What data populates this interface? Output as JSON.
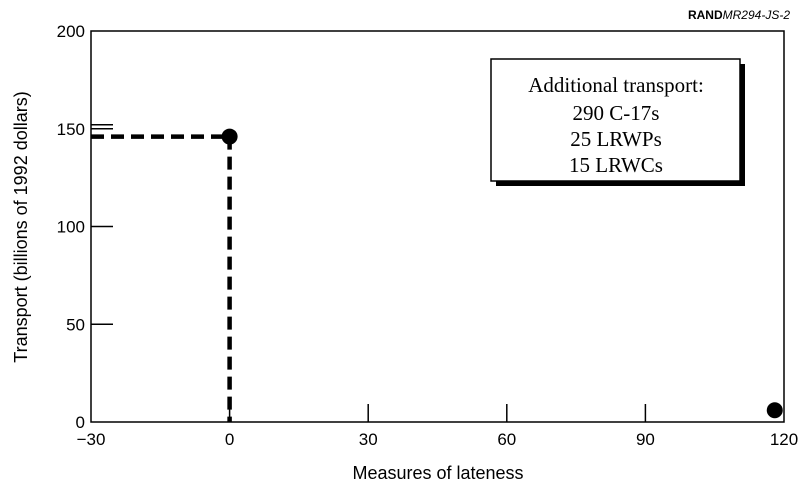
{
  "chart_data": {
    "type": "scatter",
    "ref_id_bold": "RAND",
    "ref_id_rest": "MR294-JS-2",
    "xlabel": "Measures of lateness",
    "ylabel": "Transport (billions of 1992 dollars)",
    "xlim": [
      -30,
      120
    ],
    "ylim": [
      0,
      200
    ],
    "xticks": [
      -30,
      0,
      30,
      60,
      90,
      120
    ],
    "yticks": [
      0,
      50,
      100,
      150,
      200
    ],
    "yminor_ticks": [
      150
    ],
    "points": [
      {
        "x": 0,
        "y": 146
      },
      {
        "x": 118,
        "y": 6
      }
    ],
    "dashed_guides": [
      {
        "from": {
          "x": -30,
          "y": 146
        },
        "to": {
          "x": 0,
          "y": 146
        }
      },
      {
        "from": {
          "x": 0,
          "y": 146
        },
        "to": {
          "x": 0,
          "y": 0
        }
      }
    ],
    "annotation": {
      "title": "Additional transport:",
      "lines": [
        "290 C-17s",
        "25 LRWPs",
        "15 LRWCs"
      ]
    },
    "grid": false
  }
}
